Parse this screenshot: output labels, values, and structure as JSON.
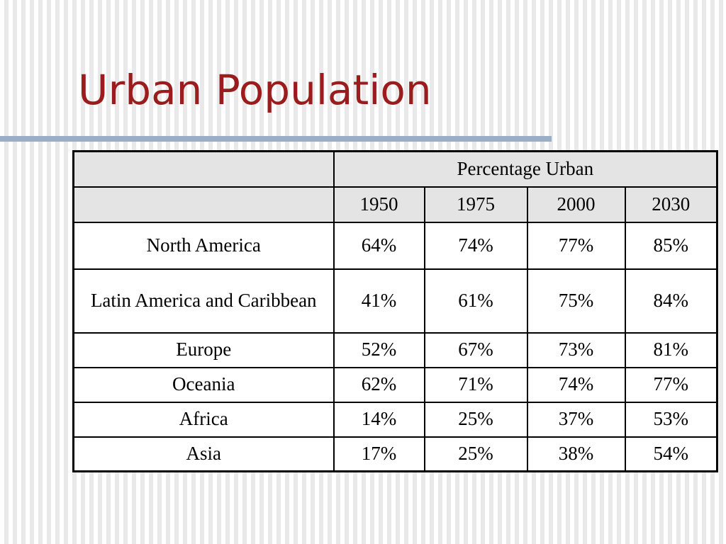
{
  "slide": {
    "title": "Urban Population"
  },
  "table": {
    "group_header": "Percentage Urban",
    "years": [
      "1950",
      "1975",
      "2000",
      "2030"
    ],
    "rows": [
      {
        "region": "North America",
        "values": [
          "64%",
          "74%",
          "77%",
          "85%"
        ]
      },
      {
        "region": "Latin America and Caribbean",
        "values": [
          "41%",
          "61%",
          "75%",
          "84%"
        ]
      },
      {
        "region": "Europe",
        "values": [
          "52%",
          "67%",
          "73%",
          "81%"
        ]
      },
      {
        "region": "Oceania",
        "values": [
          "62%",
          "71%",
          "74%",
          "77%"
        ]
      },
      {
        "region": "Africa",
        "values": [
          "14%",
          "25%",
          "37%",
          "53%"
        ]
      },
      {
        "region": "Asia",
        "values": [
          "17%",
          "25%",
          "38%",
          "54%"
        ]
      }
    ]
  },
  "colors": {
    "title": "#9b1c1c",
    "rule": "#9aaec7",
    "header_fill": "#e4e4e4"
  }
}
